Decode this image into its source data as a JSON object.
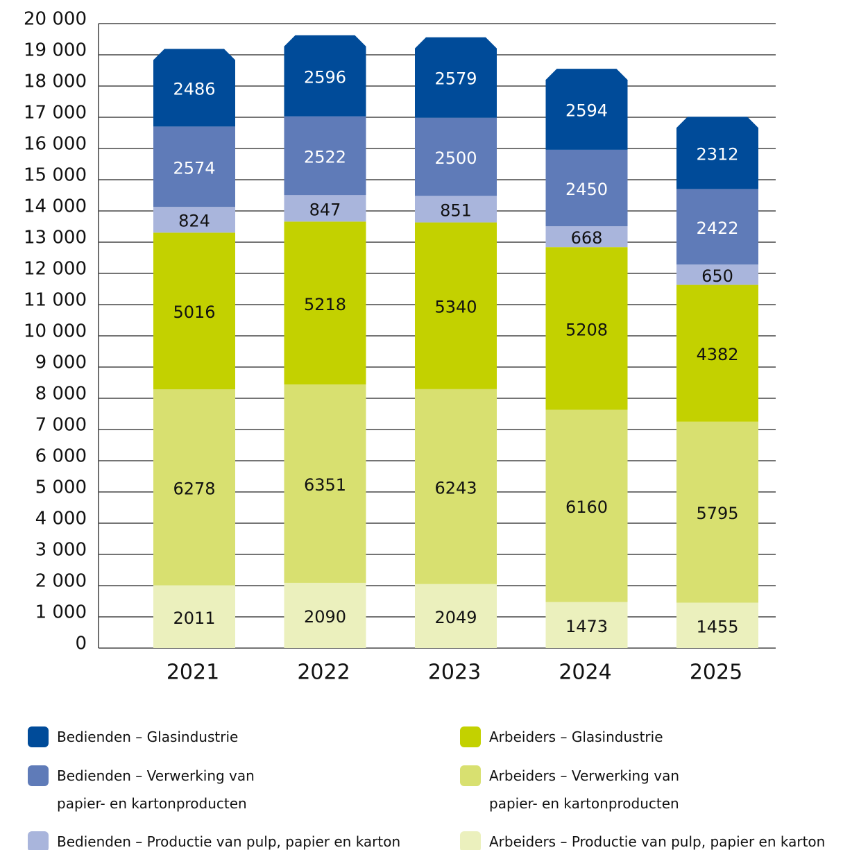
{
  "chart_data": {
    "type": "stacked_bar",
    "categories": [
      "2021",
      "2022",
      "2023",
      "2024",
      "2025"
    ],
    "ylim": [
      0,
      20000
    ],
    "yticks": [
      0,
      {
        "value": 1000,
        "label": "1 000"
      },
      {
        "value": 2000,
        "label": "2 000"
      },
      {
        "value": 3000,
        "label": "3 000"
      },
      {
        "value": 4000,
        "label": "4 000"
      },
      {
        "value": 5000,
        "label": "5 000"
      },
      {
        "value": 6000,
        "label": "6 000"
      },
      {
        "value": 7000,
        "label": "7 000"
      },
      {
        "value": 8000,
        "label": "8 000"
      },
      {
        "value": 9000,
        "label": "9 000"
      },
      {
        "value": 10000,
        "label": "10 000"
      },
      {
        "value": 11000,
        "label": "11 000"
      },
      {
        "value": 12000,
        "label": "12 000"
      },
      {
        "value": 13000,
        "label": "13 000"
      },
      {
        "value": 14000,
        "label": "14 000"
      },
      {
        "value": 15000,
        "label": "15 000"
      },
      {
        "value": 16000,
        "label": "16 000"
      },
      {
        "value": 17000,
        "label": "17 000"
      },
      {
        "value": 18000,
        "label": "18 000"
      },
      {
        "value": 19000,
        "label": "19 000"
      },
      {
        "value": 20000,
        "label": "20 000"
      }
    ],
    "grid": true,
    "series": [
      {
        "name": "Arbeiders – Productie van pulp, papier en karton",
        "color": "#ebf0bd",
        "values": [
          2011,
          2090,
          2049,
          1473,
          1455
        ]
      },
      {
        "name": "Arbeiders – Verwerking van papier- en kartonproducten",
        "color": "#d8e070",
        "values": [
          6278,
          6351,
          6243,
          6160,
          5795
        ]
      },
      {
        "name": "Arbeiders – Glasindustrie",
        "color": "#c3d100",
        "values": [
          5016,
          5218,
          5340,
          5208,
          4382
        ]
      },
      {
        "name": "Bedienden – Productie van pulp, papier en karton",
        "color": "#a9b5dc",
        "values": [
          824,
          847,
          851,
          668,
          650
        ]
      },
      {
        "name": "Bedienden – Verwerking van papier- en kartonproducten",
        "color": "#5f7bb8",
        "values": [
          2574,
          2522,
          2500,
          2450,
          2422
        ]
      },
      {
        "name": "Bedienden – Glasindustrie",
        "color": "#004b99",
        "values": [
          2486,
          2596,
          2579,
          2594,
          2312
        ]
      }
    ]
  }
}
